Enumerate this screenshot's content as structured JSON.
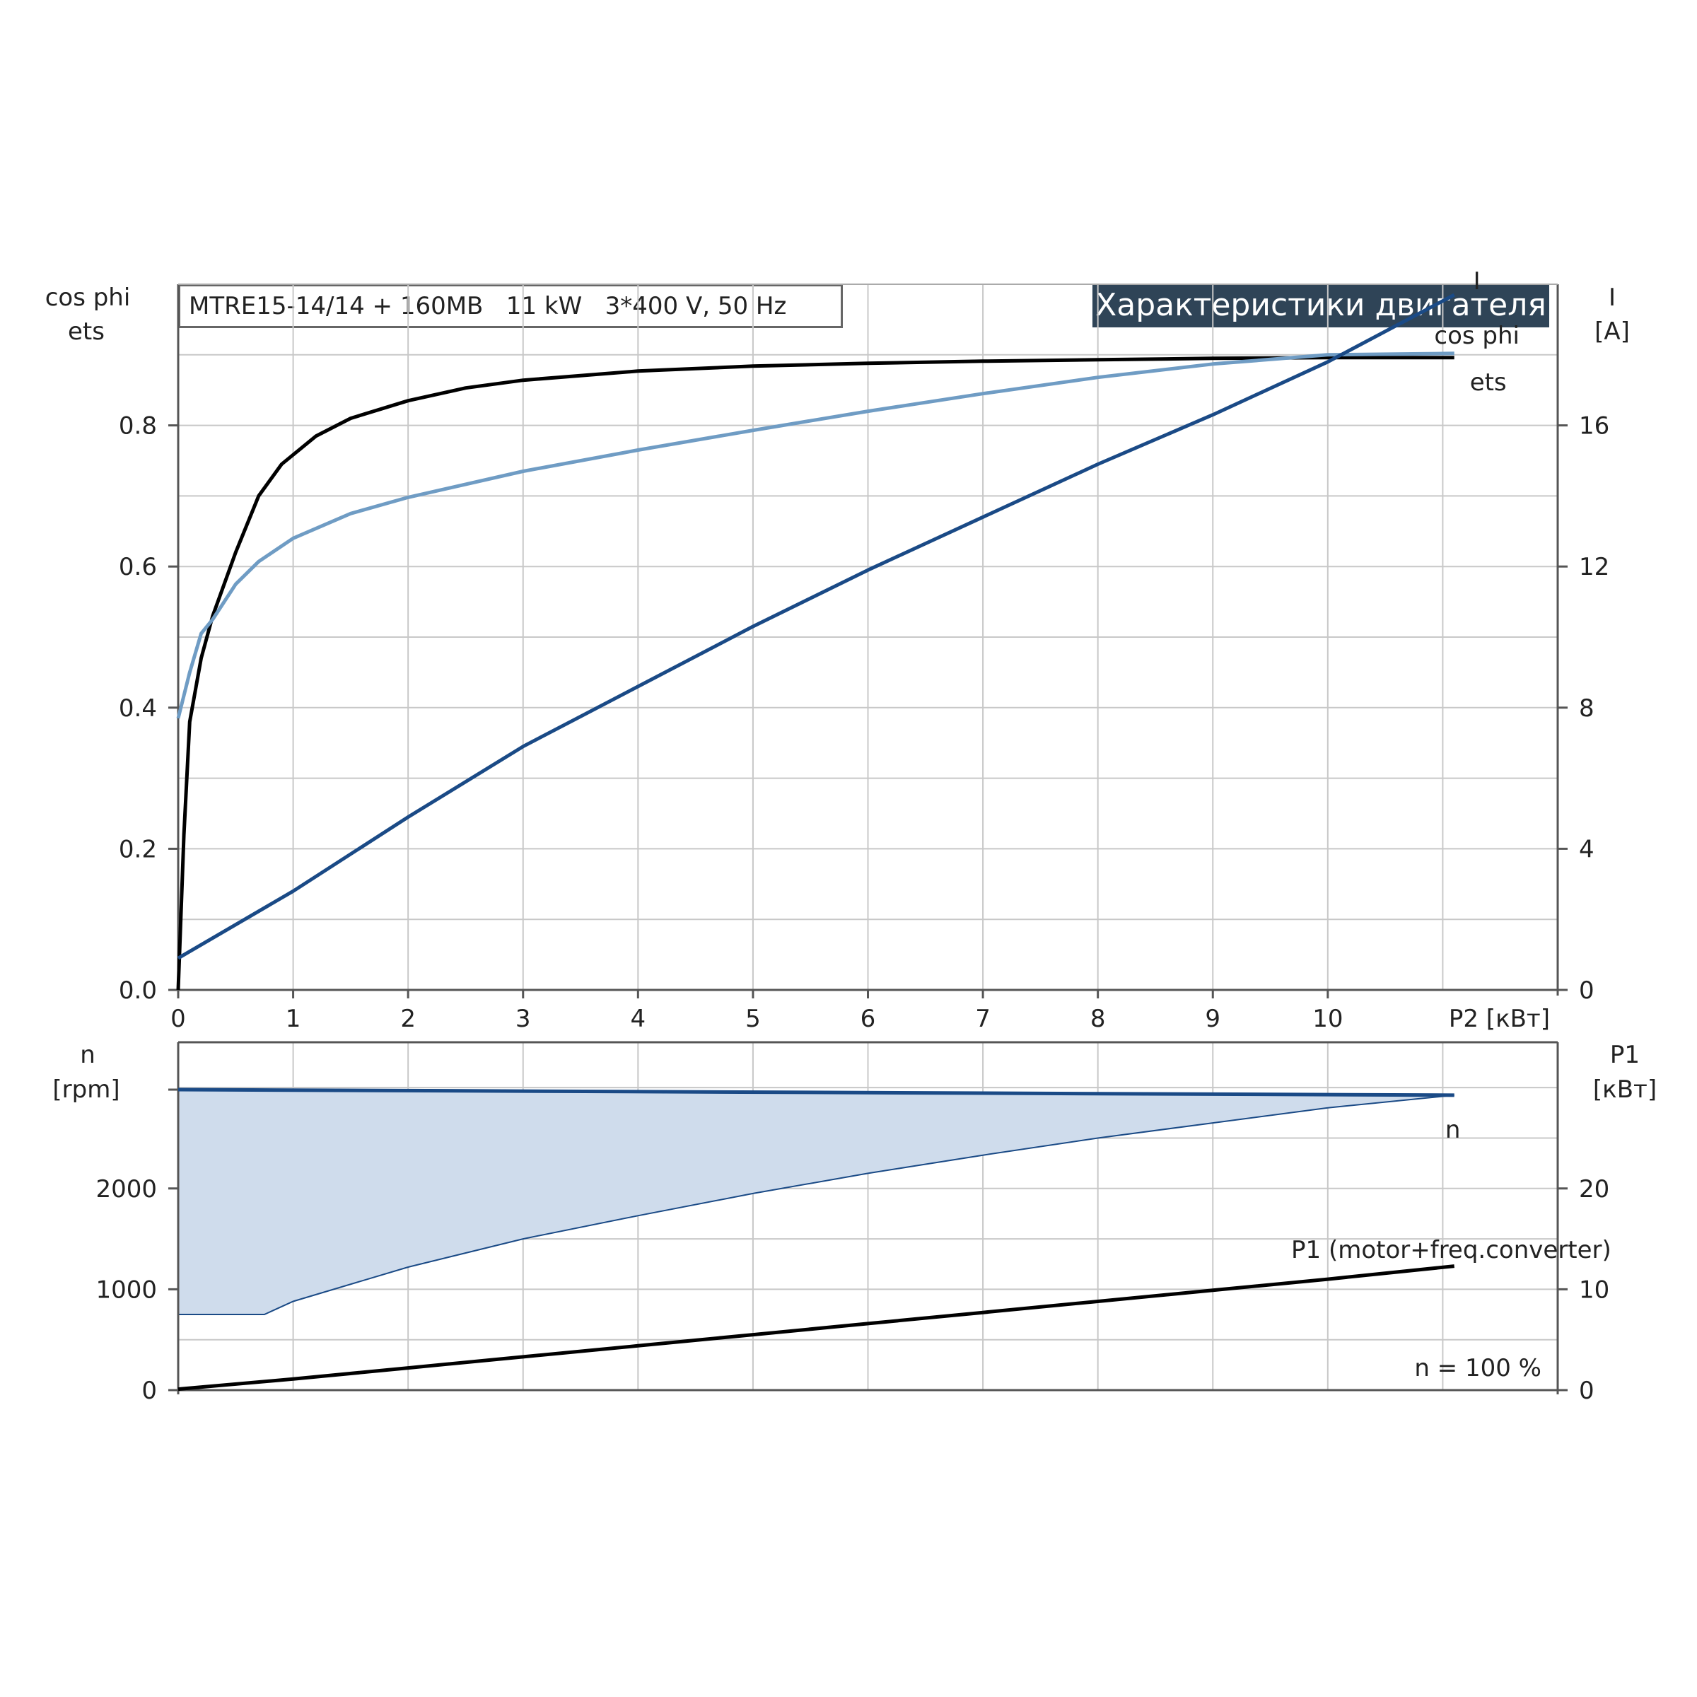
{
  "header": {
    "model_label": "MTRE15-14/14 + 160MB   11 kW   3*400 V, 50 Hz",
    "title": "Характеристики двигателя"
  },
  "colors": {
    "eta": "#000000",
    "cos_phi": "#6f9cc4",
    "current": "#1a4a86",
    "speed": "#1a4a86",
    "speed_fill": "#cfdcec",
    "p1": "#000000",
    "title_bg": "#2f4457",
    "grid": "#c8c8c8"
  },
  "chart_data": [
    {
      "type": "line",
      "name": "upper-chart",
      "xlabel": "P2 [кВт]",
      "ylabel_left": [
        "cos phi",
        "ets"
      ],
      "ylabel_right": [
        "I",
        "[A]"
      ],
      "xlim": [
        0,
        12
      ],
      "ylim_left": [
        0,
        1.0
      ],
      "ylim_right": [
        0,
        20
      ],
      "x_ticks": [
        0,
        1,
        2,
        3,
        4,
        5,
        6,
        7,
        8,
        9,
        10
      ],
      "x_tick_labels": [
        "0",
        "1",
        "2",
        "3",
        "4",
        "5",
        "6",
        "7",
        "8",
        "9",
        "10"
      ],
      "y_left_ticks": [
        0,
        0.2,
        0.4,
        0.6,
        0.8
      ],
      "y_left_tick_labels": [
        "0.0",
        "0.2",
        "0.4",
        "0.6",
        "0.8"
      ],
      "y_right_ticks": [
        0,
        4,
        8,
        12,
        16
      ],
      "y_right_tick_labels": [
        "0",
        "4",
        "8",
        "12",
        "16"
      ],
      "grid": true,
      "series": [
        {
          "name": "ets",
          "axis": "left",
          "color_key": "eta",
          "x": [
            0,
            0.05,
            0.1,
            0.2,
            0.3,
            0.5,
            0.7,
            0.9,
            1.2,
            1.5,
            2,
            2.5,
            3,
            4,
            5,
            6,
            7,
            8,
            9,
            10,
            11.1
          ],
          "y": [
            0.0,
            0.22,
            0.38,
            0.47,
            0.53,
            0.62,
            0.7,
            0.745,
            0.785,
            0.81,
            0.835,
            0.853,
            0.864,
            0.877,
            0.884,
            0.888,
            0.891,
            0.893,
            0.895,
            0.896,
            0.896
          ]
        },
        {
          "name": "cos phi",
          "axis": "left",
          "color_key": "cos_phi",
          "x": [
            0,
            0.1,
            0.2,
            0.3,
            0.5,
            0.7,
            1.0,
            1.5,
            2,
            3,
            4,
            5,
            6,
            7,
            8,
            9,
            10,
            11.1
          ],
          "y": [
            0.385,
            0.45,
            0.505,
            0.525,
            0.575,
            0.607,
            0.64,
            0.675,
            0.698,
            0.735,
            0.765,
            0.793,
            0.82,
            0.845,
            0.868,
            0.887,
            0.9,
            0.902
          ]
        },
        {
          "name": "I",
          "axis": "right",
          "color_key": "current",
          "x": [
            0,
            1,
            2,
            3,
            4,
            5,
            6,
            7,
            8,
            9,
            10,
            11.1
          ],
          "y": [
            0.9,
            2.8,
            4.9,
            6.9,
            8.6,
            10.3,
            11.9,
            13.4,
            14.9,
            16.3,
            17.8,
            19.7
          ]
        }
      ],
      "line_labels": {
        "current": "I",
        "cos_phi": "cos phi",
        "eta": "ets"
      }
    },
    {
      "type": "line",
      "name": "lower-chart",
      "ylabel_left": [
        "n",
        "[rpm]"
      ],
      "ylabel_right": [
        "P1",
        "[кВт]"
      ],
      "xlim": [
        0,
        12
      ],
      "ylim_left": [
        0,
        3450
      ],
      "ylim_right": [
        0,
        34.5
      ],
      "y_left_ticks": [
        0,
        1000,
        2000
      ],
      "y_left_tick_labels": [
        "0",
        "1000",
        "2000"
      ],
      "y_right_ticks": [
        0,
        10,
        20
      ],
      "y_right_tick_labels": [
        "0",
        "10",
        "20"
      ],
      "grid": true,
      "series": [
        {
          "name": "n",
          "axis": "left",
          "color_key": "speed",
          "x": [
            0,
            11.1
          ],
          "y": [
            2980,
            2925
          ]
        },
        {
          "name": "P1 (motor+freq.converter)",
          "axis": "right",
          "color_key": "p1",
          "x": [
            0,
            1,
            2,
            3,
            4,
            5,
            6,
            7,
            8,
            9,
            10,
            11.1
          ],
          "y": [
            0.1,
            1.1,
            2.2,
            3.3,
            4.4,
            5.5,
            6.6,
            7.7,
            8.8,
            9.9,
            11.0,
            12.3
          ]
        }
      ],
      "speed_range_lower": {
        "x": [
          0,
          0.75,
          1,
          2,
          3,
          4,
          5,
          6,
          7,
          8,
          9,
          10,
          11.1
        ],
        "y": [
          750,
          750,
          880,
          1220,
          1500,
          1730,
          1950,
          2150,
          2330,
          2500,
          2650,
          2800,
          2925
        ]
      },
      "line_labels": {
        "speed": "n",
        "p1": "P1 (motor+freq.converter)"
      },
      "annotation": "n = 100 %"
    }
  ]
}
